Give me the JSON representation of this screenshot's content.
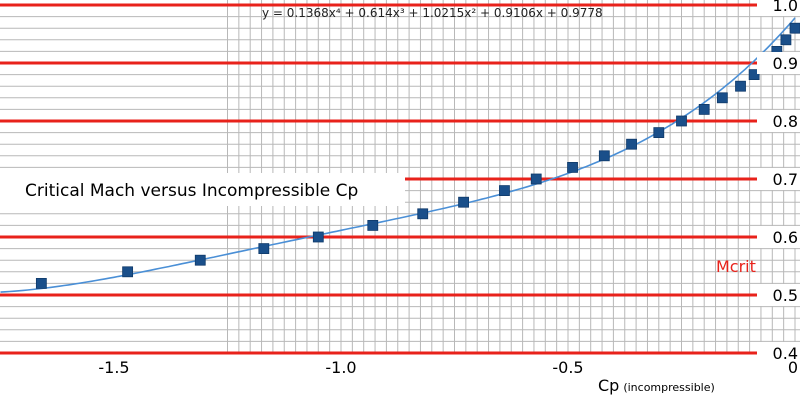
{
  "chart_data": {
    "type": "scatter",
    "title": "Critical Mach versus Incompressible Cp",
    "equation": "y = 0.1368x⁴ + 0.614x³ + 1.0215x² + 0.9106x + 0.9778",
    "xlabel": "Cp",
    "xlabel_sub": "(incompressible)",
    "ylabel": "Mcrit",
    "xlim": [
      -1.75,
      0
    ],
    "ylim": [
      0.4,
      1.0
    ],
    "grid": true,
    "x_ticks": [
      -1.5,
      -1.0,
      -0.5,
      0
    ],
    "x_tick_labels": [
      "-1.5",
      "-1.0",
      "-0.5",
      "0"
    ],
    "y_ticks": [
      0.4,
      0.5,
      0.6,
      0.7,
      0.8,
      0.9,
      1.0
    ],
    "y_tick_labels": [
      "0.4",
      "0.5",
      "0.6",
      "0.7",
      "0.8",
      "0.9",
      "1.0"
    ],
    "series": [
      {
        "kind": "points",
        "x": [
          -1.66,
          -1.47,
          -1.31,
          -1.17,
          -1.05,
          -0.93,
          -0.82,
          -0.73,
          -0.64,
          -0.57,
          -0.49,
          -0.42,
          -0.36,
          -0.3,
          -0.25,
          -0.2,
          -0.16,
          -0.12,
          -0.09,
          -0.06,
          -0.04,
          -0.02,
          0.0
        ],
        "y": [
          0.52,
          0.54,
          0.56,
          0.58,
          0.6,
          0.62,
          0.64,
          0.66,
          0.68,
          0.7,
          0.72,
          0.74,
          0.76,
          0.78,
          0.8,
          0.82,
          0.84,
          0.86,
          0.88,
          0.9,
          0.92,
          0.94,
          0.96
        ],
        "color": "#1a4f8a"
      },
      {
        "kind": "trendline",
        "coefficients": [
          0.1368,
          0.614,
          1.0215,
          0.9106,
          0.9778
        ],
        "color": "#4a8fd6"
      }
    ],
    "colors": {
      "major_grid": "#e8221b",
      "minor_grid": "#b8b8b8",
      "mcrit_label": "#e8221b"
    }
  }
}
